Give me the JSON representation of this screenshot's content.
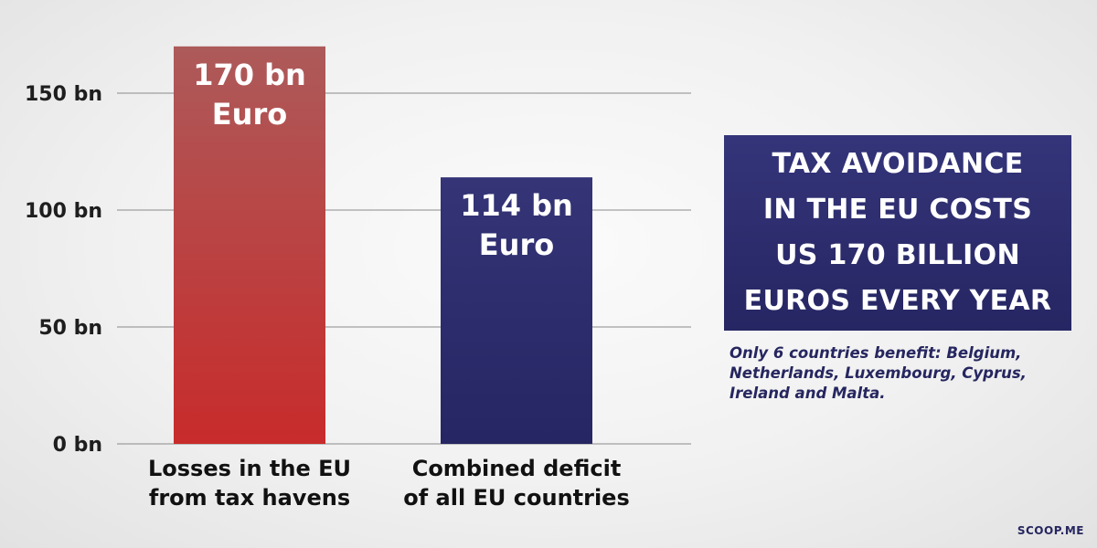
{
  "chart_data": {
    "type": "bar",
    "categories": [
      [
        "Losses in the EU",
        "from tax havens"
      ],
      [
        "Combined deficit",
        "of all EU countries"
      ]
    ],
    "values": [
      170,
      114
    ],
    "bar_labels": [
      [
        "170 bn",
        "Euro"
      ],
      [
        "114 bn",
        "Euro"
      ]
    ],
    "bar_colors": [
      {
        "top": "#ad5a5a",
        "bottom": "#c82b2b"
      },
      {
        "top": "#343477",
        "bottom": "#262664"
      }
    ],
    "yticks": [
      0,
      50,
      100,
      150
    ],
    "ytick_labels": [
      "0 bn",
      "50 bn",
      "100 bn",
      "150 bn"
    ],
    "ylim": [
      0,
      170
    ],
    "grid": true
  },
  "headline": "TAX AVOIDANCE\nIN THE EU COSTS\nUS 170 BILLION\nEUROS EVERY YEAR",
  "note": "Only 6 countries benefit: Belgium, Netherlands, Luxembourg, Cyprus, Ireland and Malta.",
  "source": "SCOOP.ME"
}
